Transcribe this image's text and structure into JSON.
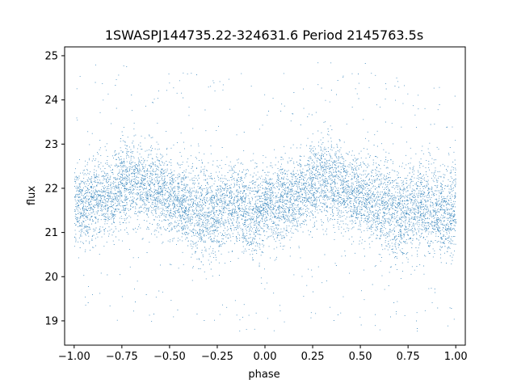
{
  "chart_data": {
    "type": "scatter",
    "title": "1SWASPJ144735.22-324631.6 Period 2145763.5s",
    "xlabel": "phase",
    "ylabel": "flux",
    "xlim": [
      -1.05,
      1.05
    ],
    "ylim": [
      18.45,
      25.2
    ],
    "xticks": [
      -1.0,
      -0.75,
      -0.5,
      -0.25,
      0.0,
      0.25,
      0.5,
      0.75,
      1.0
    ],
    "xtick_labels": [
      "−1.00",
      "−0.75",
      "−0.50",
      "−0.25",
      "0.00",
      "0.25",
      "0.50",
      "0.75",
      "1.00"
    ],
    "yticks": [
      19,
      20,
      21,
      22,
      23,
      24,
      25
    ],
    "ytick_labels": [
      "19",
      "20",
      "21",
      "22",
      "23",
      "24",
      "25"
    ],
    "grid": false,
    "point_color": "#1f77b4",
    "series": [
      {
        "x_range": [
          -1.0,
          1.0
        ],
        "profile_phase": [
          0.0,
          0.05,
          0.1,
          0.15,
          0.2,
          0.25,
          0.3,
          0.35,
          0.4,
          0.45,
          0.5,
          0.55,
          0.6,
          0.65,
          0.7,
          0.75,
          0.8,
          0.85,
          0.9,
          0.95,
          1.0
        ],
        "profile_center": [
          21.7,
          21.6,
          21.7,
          21.8,
          21.9,
          22.1,
          22.2,
          22.1,
          22.0,
          21.9,
          21.8,
          21.7,
          21.6,
          21.5,
          21.4,
          21.5,
          21.6,
          21.6,
          21.5,
          21.4,
          21.6
        ],
        "profile_spread": [
          0.55,
          0.6,
          0.6,
          0.6,
          0.6,
          0.65,
          0.65,
          0.6,
          0.6,
          0.6,
          0.6,
          0.6,
          0.65,
          0.7,
          0.7,
          0.65,
          0.6,
          0.6,
          0.65,
          0.7,
          0.6
        ]
      }
    ]
  }
}
